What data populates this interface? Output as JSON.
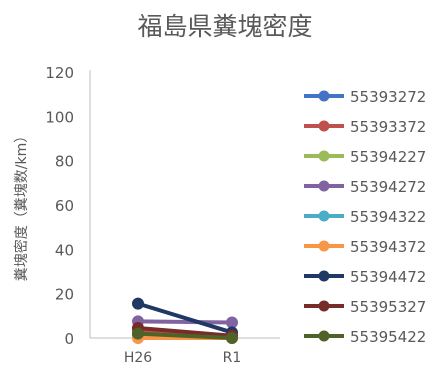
{
  "chart_data": {
    "type": "line",
    "title": "福島県糞塊密度",
    "ylabel": "糞塊密度（糞塊数/km）",
    "xlabel": "",
    "categories": [
      "H26",
      "R1"
    ],
    "ylim": [
      0,
      120
    ],
    "yticks": [
      0,
      20,
      40,
      60,
      80,
      100,
      120
    ],
    "grid": false,
    "legend_position": "right",
    "series": [
      {
        "name": "55393272",
        "color": "#4472C4",
        "values": [
          1.5,
          0.5
        ]
      },
      {
        "name": "55393372",
        "color": "#C0504D",
        "values": [
          3.5,
          0.5
        ]
      },
      {
        "name": "55394227",
        "color": "#9BBB59",
        "values": [
          1.5,
          0.5
        ]
      },
      {
        "name": "55394272",
        "color": "#8064A2",
        "values": [
          7.5,
          7.0
        ]
      },
      {
        "name": "55394322",
        "color": "#4BACC6",
        "values": [
          1.0,
          0.5
        ]
      },
      {
        "name": "55394372",
        "color": "#F79646",
        "values": [
          0.0,
          0.0
        ]
      },
      {
        "name": "55394472",
        "color": "#1F3864",
        "values": [
          15.5,
          2.5
        ]
      },
      {
        "name": "55395327",
        "color": "#772C2A",
        "values": [
          4.5,
          1.0
        ]
      },
      {
        "name": "55395422",
        "color": "#4F6228",
        "values": [
          2.0,
          0.0
        ]
      }
    ]
  }
}
